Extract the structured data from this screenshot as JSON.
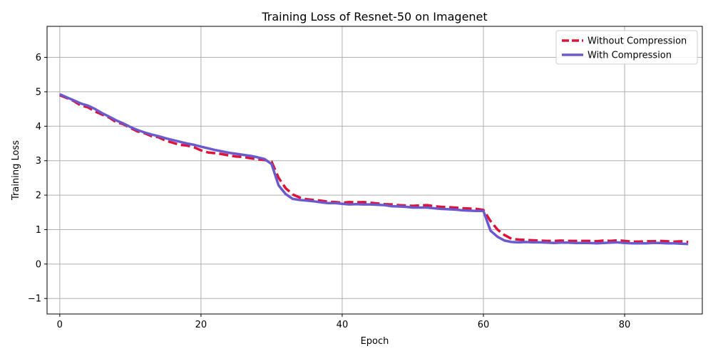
{
  "chart_data": {
    "type": "line",
    "title": "Training Loss of Resnet-50 on Imagenet",
    "xlabel": "Epoch",
    "ylabel": "Training Loss",
    "xlim": [
      -1.8,
      91
    ],
    "ylim": [
      -1.45,
      6.9
    ],
    "x_ticks": [
      0,
      20,
      40,
      60,
      80
    ],
    "y_ticks": [
      -1,
      0,
      1,
      2,
      3,
      4,
      5,
      6
    ],
    "grid": true,
    "legend_position": "top-right",
    "x": [
      0,
      1,
      2,
      3,
      4,
      5,
      6,
      7,
      8,
      9,
      10,
      11,
      12,
      13,
      14,
      15,
      16,
      17,
      18,
      19,
      20,
      21,
      22,
      23,
      24,
      25,
      26,
      27,
      28,
      29,
      30,
      31,
      32,
      33,
      34,
      35,
      36,
      37,
      38,
      39,
      40,
      41,
      42,
      43,
      44,
      45,
      46,
      47,
      48,
      49,
      50,
      51,
      52,
      53,
      54,
      55,
      56,
      57,
      58,
      59,
      60,
      61,
      62,
      63,
      64,
      65,
      66,
      67,
      68,
      69,
      70,
      71,
      72,
      73,
      74,
      75,
      76,
      77,
      78,
      79,
      80,
      81,
      82,
      83,
      84,
      85,
      86,
      87,
      88,
      89
    ],
    "series": [
      {
        "name": "Without Compression",
        "color": "#dc143c",
        "dash": "dashed",
        "values": [
          4.9,
          4.82,
          4.73,
          4.6,
          4.55,
          4.43,
          4.34,
          4.25,
          4.12,
          4.06,
          3.95,
          3.85,
          3.8,
          3.71,
          3.68,
          3.58,
          3.52,
          3.46,
          3.44,
          3.39,
          3.3,
          3.24,
          3.22,
          3.19,
          3.15,
          3.12,
          3.11,
          3.07,
          3.04,
          3.02,
          2.97,
          2.5,
          2.2,
          2.02,
          1.93,
          1.88,
          1.86,
          1.84,
          1.81,
          1.8,
          1.78,
          1.8,
          1.79,
          1.8,
          1.78,
          1.76,
          1.74,
          1.73,
          1.71,
          1.7,
          1.69,
          1.7,
          1.71,
          1.68,
          1.66,
          1.65,
          1.64,
          1.62,
          1.61,
          1.6,
          1.57,
          1.25,
          1.0,
          0.84,
          0.73,
          0.71,
          0.7,
          0.69,
          0.68,
          0.67,
          0.67,
          0.68,
          0.67,
          0.67,
          0.67,
          0.67,
          0.66,
          0.68,
          0.67,
          0.69,
          0.67,
          0.65,
          0.65,
          0.66,
          0.66,
          0.67,
          0.66,
          0.65,
          0.66,
          0.64
        ]
      },
      {
        "name": "With Compression",
        "color": "#6a5acd",
        "dash": "solid",
        "values": [
          4.93,
          4.84,
          4.75,
          4.66,
          4.6,
          4.5,
          4.38,
          4.28,
          4.17,
          4.08,
          3.98,
          3.89,
          3.82,
          3.76,
          3.71,
          3.65,
          3.6,
          3.55,
          3.5,
          3.46,
          3.41,
          3.36,
          3.31,
          3.27,
          3.23,
          3.2,
          3.17,
          3.14,
          3.1,
          3.05,
          2.9,
          2.28,
          2.03,
          1.89,
          1.86,
          1.84,
          1.82,
          1.79,
          1.77,
          1.77,
          1.75,
          1.73,
          1.74,
          1.73,
          1.73,
          1.72,
          1.71,
          1.68,
          1.67,
          1.66,
          1.64,
          1.64,
          1.64,
          1.62,
          1.6,
          1.59,
          1.58,
          1.56,
          1.55,
          1.54,
          1.54,
          0.97,
          0.79,
          0.68,
          0.64,
          0.63,
          0.64,
          0.63,
          0.63,
          0.62,
          0.61,
          0.62,
          0.62,
          0.61,
          0.61,
          0.61,
          0.6,
          0.61,
          0.62,
          0.63,
          0.61,
          0.6,
          0.6,
          0.6,
          0.61,
          0.61,
          0.6,
          0.6,
          0.59,
          0.58
        ]
      }
    ]
  }
}
